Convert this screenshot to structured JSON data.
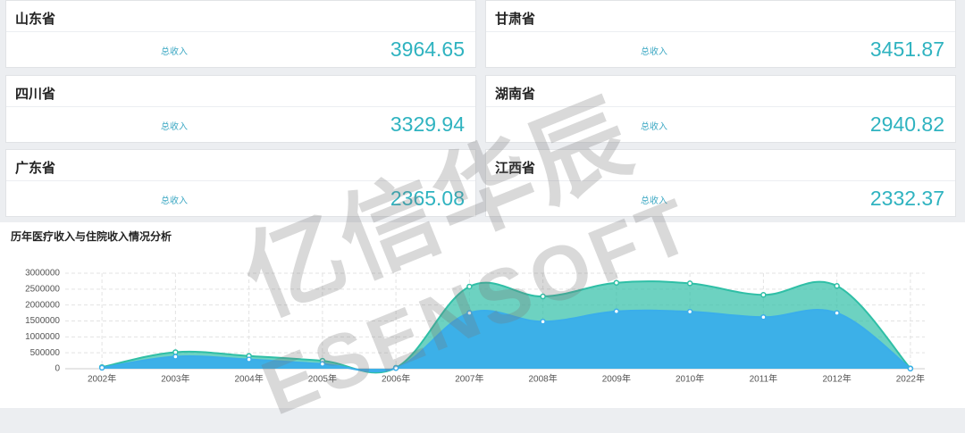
{
  "cards": [
    {
      "name": "山东省",
      "label": "总收入",
      "value": 3964.65
    },
    {
      "name": "甘肃省",
      "label": "总收入",
      "value": 3451.87
    },
    {
      "name": "四川省",
      "label": "总收入",
      "value": 3329.94
    },
    {
      "name": "湖南省",
      "label": "总收入",
      "value": 2940.82
    },
    {
      "name": "广东省",
      "label": "总收入",
      "value": 2365.08
    },
    {
      "name": "江西省",
      "label": "总收入",
      "value": 2332.37
    }
  ],
  "watermark": {
    "logo": "亿信华辰",
    "brand": "ESENSOFT"
  },
  "chart_data": {
    "type": "area",
    "title": "历年医疗收入与住院收入情况分析",
    "categories": [
      "2002年",
      "2003年",
      "2004年",
      "2005年",
      "2006年",
      "2007年",
      "2008年",
      "2009年",
      "2010年",
      "2011年",
      "2012年",
      "2022年"
    ],
    "series": [
      {
        "color": "#2fbfa6",
        "values": [
          50000,
          520000,
          400000,
          250000,
          30000,
          2580000,
          2270000,
          2700000,
          2680000,
          2320000,
          2600000,
          10000
        ]
      },
      {
        "color": "#3aaeea",
        "values": [
          30000,
          380000,
          290000,
          150000,
          20000,
          1750000,
          1480000,
          1800000,
          1790000,
          1620000,
          1750000,
          5000
        ]
      }
    ],
    "ylim": [
      0,
      3000000
    ],
    "yticks": [
      0,
      500000,
      1000000,
      1500000,
      2000000,
      2500000,
      3000000
    ],
    "grid": true
  }
}
